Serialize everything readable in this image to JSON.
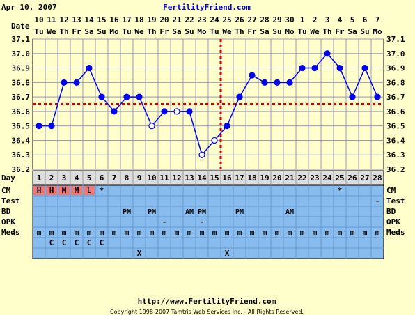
{
  "header": {
    "date": "Apr 10, 2007",
    "site": "FertilityFriend.com"
  },
  "footer": {
    "url": "http://www.FertilityFriend.com",
    "copyright": "Copyright 1998-2007 Tamtris Web Services Inc. - All Rights Reserved."
  },
  "labels": {
    "date_row": "Date",
    "day_row": "Day",
    "cm": "CM",
    "test": "Test",
    "bd": "BD",
    "opk": "OPK",
    "meds": "Meds"
  },
  "colors": {
    "background": "#ffffcc",
    "plot_bg": "#ffffcc",
    "grid": "#9999bb",
    "temp_line": "#0000ee",
    "coverline": "#cc0000",
    "table_bg": "#88bbee",
    "cm_highlight": "#ee7777",
    "site_link": "#0000cc"
  },
  "chart_data": {
    "type": "line",
    "title": "",
    "ylabel": "",
    "ylim": [
      36.2,
      37.1
    ],
    "yticks": [
      "36.2",
      "36.3",
      "36.4",
      "36.5",
      "36.6",
      "36.7",
      "36.8",
      "36.9",
      "37.0",
      "37.1"
    ],
    "date_numbers": [
      "10",
      "11",
      "12",
      "13",
      "14",
      "15",
      "16",
      "17",
      "18",
      "19",
      "20",
      "21",
      "22",
      "23",
      "24",
      "25",
      "26",
      "27",
      "28",
      "29",
      "30",
      "1",
      "2",
      "3",
      "4",
      "5",
      "6",
      "7"
    ],
    "weekdays": [
      "Tu",
      "We",
      "Th",
      "Fr",
      "Sa",
      "Su",
      "Mo",
      "Tu",
      "We",
      "Th",
      "Fr",
      "Sa",
      "Su",
      "Mo",
      "Tu",
      "We",
      "Th",
      "Fr",
      "Sa",
      "Su",
      "Mo",
      "Tu",
      "We",
      "Th",
      "Fr",
      "Sa",
      "Su",
      "Mo"
    ],
    "cycle_days": [
      "1",
      "2",
      "3",
      "4",
      "5",
      "6",
      "7",
      "8",
      "9",
      "10",
      "11",
      "12",
      "13",
      "14",
      "15",
      "16",
      "17",
      "18",
      "19",
      "20",
      "21",
      "22",
      "23",
      "24",
      "25",
      "26",
      "27",
      "28"
    ],
    "temperatures": [
      36.5,
      36.5,
      36.8,
      36.8,
      36.9,
      36.7,
      36.6,
      36.7,
      36.7,
      36.5,
      36.6,
      36.6,
      36.6,
      36.3,
      36.4,
      36.5,
      36.7,
      36.85,
      36.8,
      36.8,
      36.8,
      36.9,
      36.9,
      37.0,
      36.9,
      36.7,
      36.9,
      36.7
    ],
    "open_points": [
      false,
      false,
      false,
      false,
      false,
      false,
      false,
      false,
      false,
      true,
      false,
      true,
      false,
      true,
      true,
      false,
      false,
      false,
      false,
      false,
      false,
      false,
      false,
      false,
      false,
      false,
      false,
      false
    ],
    "coverline": 36.65,
    "ovulation_day": 16,
    "grid": true
  },
  "table": {
    "cm": [
      "H",
      "H",
      "M",
      "M",
      "L",
      "*",
      "",
      "",
      "",
      "",
      "",
      "",
      "",
      "",
      "",
      "",
      "",
      "",
      "",
      "",
      "",
      "",
      "",
      "",
      "*",
      "",
      "",
      ""
    ],
    "cm_highlight": [
      true,
      true,
      true,
      true,
      true,
      false,
      false,
      false,
      false,
      false,
      false,
      false,
      false,
      false,
      false,
      false,
      false,
      false,
      false,
      false,
      false,
      false,
      false,
      false,
      false,
      false,
      false,
      false
    ],
    "test": [
      "",
      "",
      "",
      "",
      "",
      "",
      "",
      "",
      "",
      "",
      "",
      "",
      "",
      "",
      "",
      "",
      "",
      "",
      "",
      "",
      "",
      "",
      "",
      "",
      "",
      "",
      "",
      "-"
    ],
    "bd": [
      "",
      "",
      "",
      "",
      "",
      "",
      "",
      "PM",
      "",
      "PM",
      "",
      "",
      "AM",
      "PM",
      "",
      "",
      "PM",
      "",
      "",
      "",
      "AM",
      "",
      "",
      "",
      "",
      "",
      "",
      ""
    ],
    "opk": [
      "",
      "",
      "",
      "",
      "",
      "",
      "",
      "",
      "",
      "",
      "-",
      "",
      "",
      "-",
      "",
      "",
      "",
      "",
      "",
      "",
      "",
      "",
      "",
      "",
      "",
      "",
      "",
      ""
    ],
    "meds": [
      "m",
      "m",
      "m",
      "m",
      "m",
      "m",
      "m",
      "m",
      "m",
      "m",
      "m",
      "m",
      "m",
      "m",
      "m",
      "m",
      "m",
      "m",
      "m",
      "m",
      "m",
      "m",
      "m",
      "m",
      "m",
      "m",
      "m",
      "m"
    ],
    "row6": [
      "",
      "C",
      "C",
      "C",
      "C",
      "C",
      "",
      "",
      "",
      "",
      "",
      "",
      "",
      "",
      "",
      "",
      "",
      "",
      "",
      "",
      "",
      "",
      "",
      "",
      "",
      "",
      "",
      ""
    ],
    "row7": [
      "",
      "",
      "",
      "",
      "",
      "",
      "",
      "",
      "X",
      "",
      "",
      "",
      "",
      "",
      "",
      "X",
      "",
      "",
      "",
      "",
      "",
      "",
      "",
      "",
      "",
      "",
      "",
      ""
    ]
  }
}
